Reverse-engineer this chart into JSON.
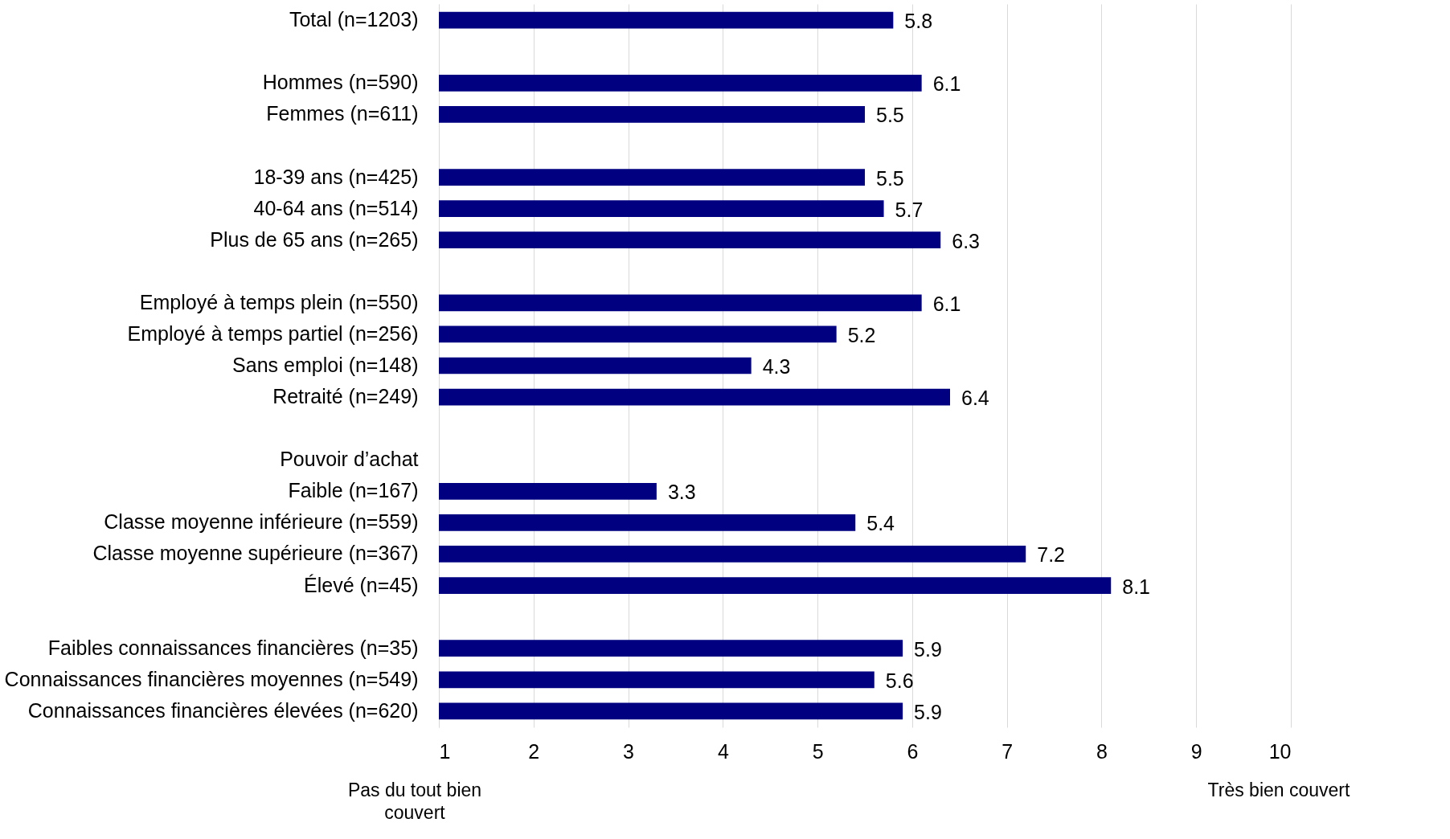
{
  "chart_data": {
    "type": "bar",
    "orientation": "horizontal",
    "categories": [
      "Total (n=1203)",
      null,
      "Hommes (n=590)",
      "Femmes (n=611)",
      null,
      "18-39 ans (n=425)",
      "40-64 ans (n=514)",
      "Plus de 65 ans (n=265)",
      null,
      "Employé à temps plein (n=550)",
      "Employé à temps partiel (n=256)",
      "Sans emploi (n=148)",
      "Retraité (n=249)",
      null,
      "Pouvoir d’achat",
      "Faible (n=167)",
      "Classe moyenne inférieure (n=559)",
      "Classe moyenne supérieure (n=367)",
      "Élevé (n=45)",
      null,
      "Faibles connaissances financières (n=35)",
      "Connaissances financières moyennes (n=549)",
      "Connaissances financières élevées (n=620)"
    ],
    "values": [
      5.8,
      null,
      6.1,
      5.5,
      null,
      5.5,
      5.7,
      6.3,
      null,
      6.1,
      5.2,
      4.3,
      6.4,
      null,
      null,
      3.3,
      5.4,
      7.2,
      8.1,
      null,
      5.9,
      5.6,
      5.9
    ],
    "color": "#000080",
    "xlim": [
      1,
      10
    ],
    "xticks": [
      1,
      2,
      3,
      4,
      5,
      6,
      7,
      8,
      9,
      10
    ],
    "grid": "x",
    "data_labels": true,
    "annotations": [
      "Pas du tout bien couvert",
      "Très bien couvert"
    ]
  }
}
